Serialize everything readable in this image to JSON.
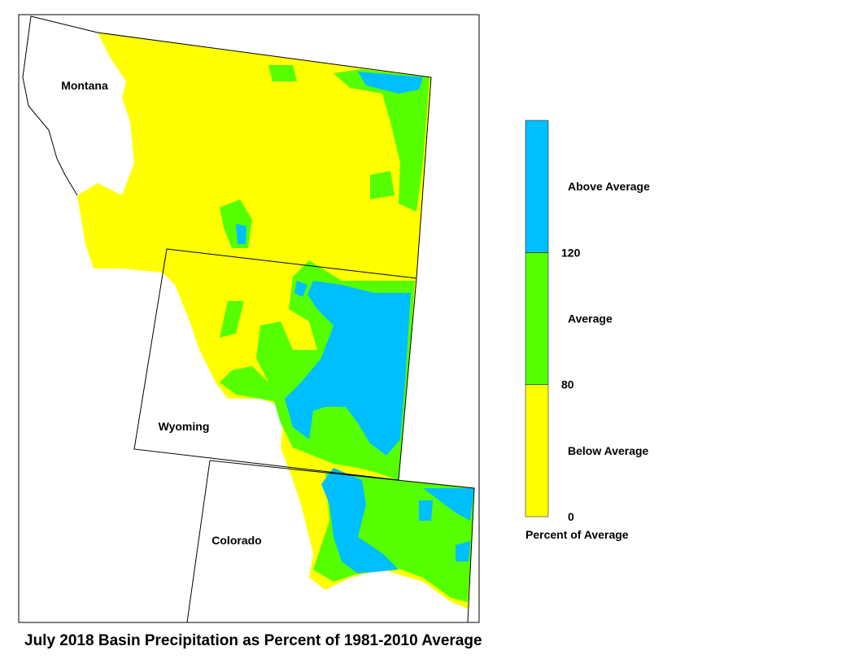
{
  "title": "July 2018 Basin Precipitation as Percent of 1981-2010 Average",
  "states": [
    "Montana",
    "Wyoming",
    "Colorado"
  ],
  "legend": {
    "title": "Percent of Average",
    "classes": [
      {
        "label": "Below Average",
        "color": "#ffff00"
      },
      {
        "label": "Average",
        "color": "#55ff00"
      },
      {
        "label": "Above Average",
        "color": "#00bfff"
      }
    ],
    "breaks": [
      0,
      80,
      120
    ]
  }
}
